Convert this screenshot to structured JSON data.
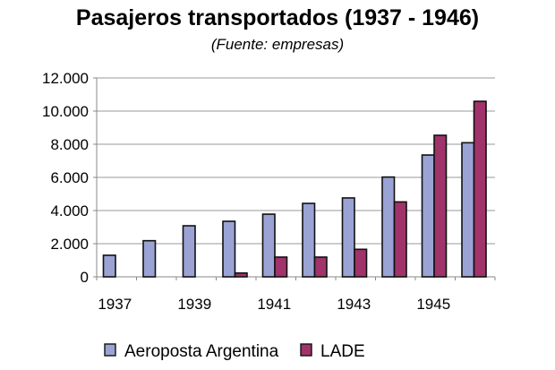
{
  "chart_data": {
    "type": "bar",
    "title": "Pasajeros transportados (1937 - 1946)",
    "subtitle": "(Fuente: empresas)",
    "xlabel": "",
    "ylabel": "",
    "categories": [
      "1937",
      "1938",
      "1939",
      "1940",
      "1941",
      "1942",
      "1943",
      "1944",
      "1945",
      "1946"
    ],
    "x_tick_labels": [
      "1937",
      "1939",
      "1941",
      "1943",
      "1945"
    ],
    "y_tick_labels": [
      "0",
      "2.000",
      "4.000",
      "6.000",
      "8.000",
      "10.000",
      "12.000"
    ],
    "ylim": [
      0,
      12000
    ],
    "grid": true,
    "legend_position": "bottom",
    "series": [
      {
        "name": "Aeroposta Argentina",
        "color": "#9aa3d4",
        "values": [
          1300,
          2180,
          3080,
          3350,
          3780,
          4430,
          4760,
          6020,
          7350,
          8090
        ]
      },
      {
        "name": "LADE",
        "color": "#a0336a",
        "values": [
          0,
          0,
          0,
          230,
          1190,
          1190,
          1660,
          4520,
          8540,
          10590
        ]
      }
    ]
  }
}
